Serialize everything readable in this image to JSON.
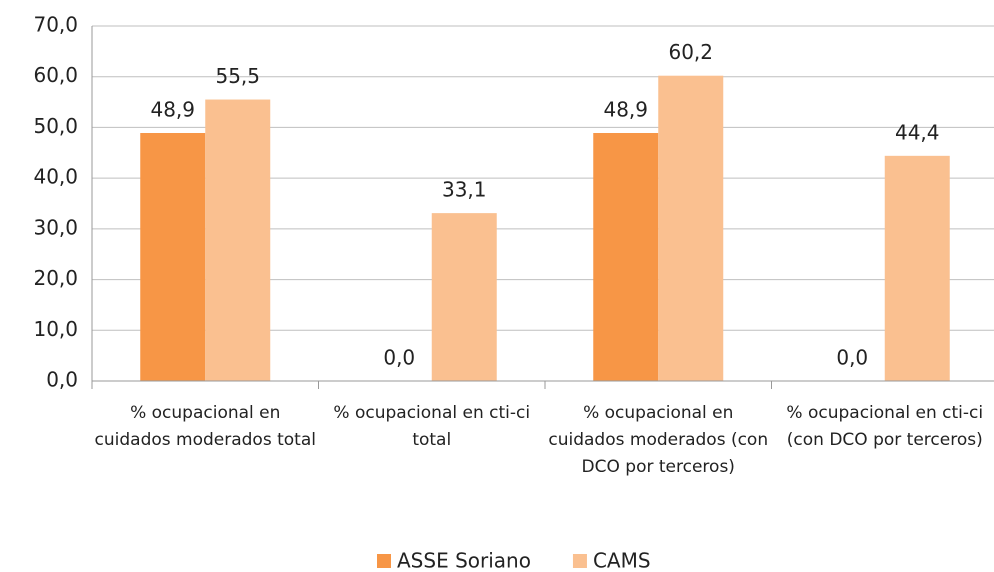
{
  "chart_data": {
    "type": "bar",
    "categories": [
      "% ocupacional en cuidados moderados total",
      "% ocupacional en cti-ci total",
      "% ocupacional en cuidados moderados (con DCO por terceros)",
      "% ocupacional en cti-ci  (con DCO por terceros)"
    ],
    "series": [
      {
        "name": "ASSE Soriano",
        "color": "#f79646",
        "values": [
          48.9,
          0,
          48.9,
          0
        ],
        "value_labels": [
          "48,9",
          "0,0",
          "48,9",
          "0,0"
        ]
      },
      {
        "name": "CAMS",
        "color": "#fac090",
        "values": [
          55.5,
          33.1,
          60.2,
          44.4
        ],
        "value_labels": [
          "55,5",
          "33,1",
          "60,2",
          "44,4"
        ]
      }
    ],
    "ylim": [
      0,
      70
    ],
    "yticks": [
      {
        "value": 0,
        "label": "0,0"
      },
      {
        "value": 10,
        "label": "10,0"
      },
      {
        "value": 20,
        "label": "20,0"
      },
      {
        "value": 30,
        "label": "30,0"
      },
      {
        "value": 40,
        "label": "40,0"
      },
      {
        "value": 50,
        "label": "50,0"
      },
      {
        "value": 60,
        "label": "60,0"
      },
      {
        "value": 70,
        "label": "70,0"
      }
    ],
    "grid": true,
    "legend": "bottom"
  }
}
